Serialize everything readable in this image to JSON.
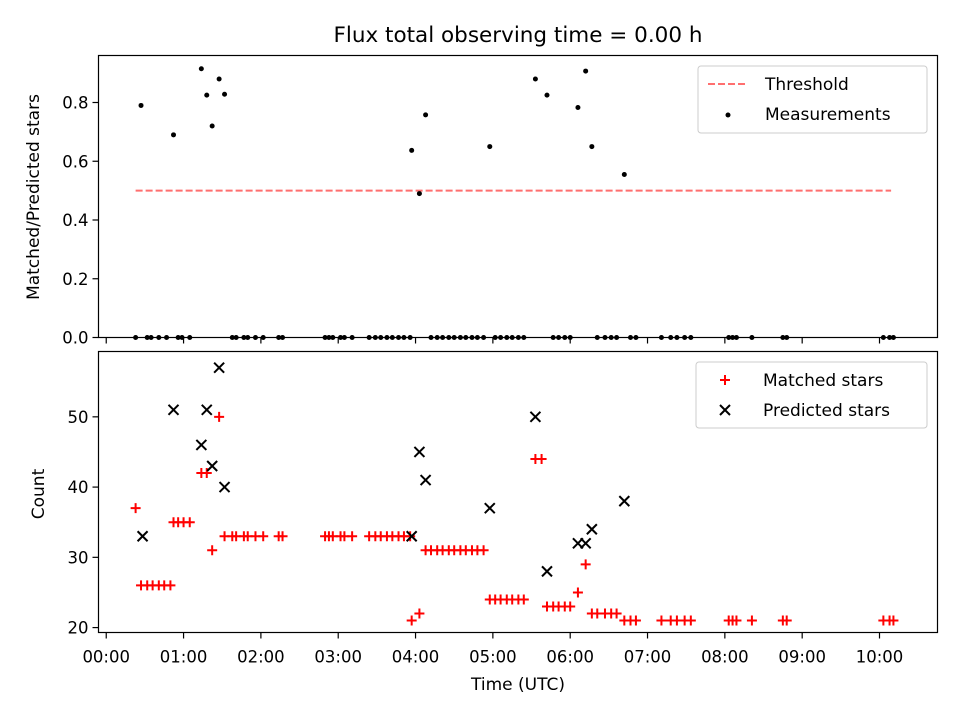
{
  "figure": {
    "title": "Flux total observing time = 0.00 h"
  },
  "colors": {
    "threshold": "#ff6f6f",
    "matched": "#ff0000",
    "predicted": "#000000",
    "measurement": "#000000"
  },
  "chart_data": [
    {
      "type": "scatter",
      "ylabel": "Matched/Predicted stars",
      "ylim": [
        0,
        0.96
      ],
      "yticks": [
        "0.0",
        "0.2",
        "0.4",
        "0.6",
        "0.8"
      ],
      "legend_position": "top-right",
      "threshold": {
        "name": "Threshold",
        "value": 0.5,
        "x_range": [
          0.38,
          10.15
        ]
      },
      "series": [
        {
          "name": "Measurements",
          "x": [
            0.38,
            0.53,
            0.58,
            0.68,
            0.78,
            0.93,
            0.98,
            1.08,
            0.45,
            0.87,
            1.23,
            1.3,
            1.37,
            1.46,
            1.53,
            1.63,
            1.68,
            1.78,
            1.83,
            1.93,
            2.03,
            2.23,
            2.28,
            2.83,
            2.88,
            2.93,
            3.03,
            3.08,
            3.18,
            3.4,
            3.48,
            3.55,
            3.63,
            3.7,
            3.78,
            3.85,
            3.93,
            3.95,
            4.05,
            4.13,
            4.2,
            4.28,
            4.35,
            4.43,
            4.5,
            4.58,
            4.65,
            4.73,
            4.8,
            4.88,
            4.96,
            5.03,
            5.1,
            5.18,
            5.25,
            5.33,
            5.4,
            5.55,
            5.7,
            5.78,
            5.85,
            5.93,
            6.0,
            6.1,
            6.2,
            6.28,
            6.35,
            6.45,
            6.53,
            6.6,
            6.7,
            6.78,
            6.85,
            7.18,
            7.3,
            7.38,
            7.48,
            7.56,
            8.05,
            8.1,
            8.15,
            8.35,
            8.75,
            8.8,
            10.05,
            10.13,
            10.18
          ],
          "y": [
            0,
            0,
            0,
            0,
            0,
            0,
            0,
            0,
            0.79,
            0.69,
            0.915,
            0.825,
            0.72,
            0.88,
            0.828,
            0,
            0,
            0,
            0,
            0,
            0,
            0,
            0,
            0,
            0,
            0,
            0,
            0,
            0,
            0,
            0,
            0,
            0,
            0,
            0,
            0,
            0,
            0.637,
            0.49,
            0.758,
            0,
            0,
            0,
            0,
            0,
            0,
            0,
            0,
            0,
            0,
            0.65,
            0,
            0,
            0,
            0,
            0,
            0,
            0.88,
            0.825,
            0,
            0,
            0,
            0,
            0.783,
            0.907,
            0.65,
            0,
            0,
            0,
            0,
            0.555,
            0,
            0,
            0,
            0,
            0,
            0,
            0,
            0,
            0,
            0,
            0,
            0,
            0,
            0,
            0,
            0
          ]
        }
      ]
    },
    {
      "type": "scatter",
      "xlabel": "Time (UTC)",
      "ylabel": "Count",
      "xlim": [
        -0.1,
        10.75
      ],
      "ylim": [
        19.3,
        59.3
      ],
      "yticks": [
        "20",
        "30",
        "40",
        "50"
      ],
      "xticks": [
        "00:00",
        "01:00",
        "02:00",
        "03:00",
        "04:00",
        "05:00",
        "06:00",
        "07:00",
        "08:00",
        "09:00",
        "10:00"
      ],
      "legend_position": "top-right",
      "series": [
        {
          "name": "Matched stars",
          "x": [
            0.38,
            0.45,
            0.53,
            0.6,
            0.68,
            0.75,
            0.83,
            0.87,
            0.93,
            1.0,
            1.08,
            1.23,
            1.3,
            1.37,
            1.46,
            1.53,
            1.63,
            1.68,
            1.78,
            1.83,
            1.93,
            2.03,
            2.23,
            2.28,
            2.83,
            2.88,
            2.93,
            3.03,
            3.08,
            3.18,
            3.4,
            3.48,
            3.55,
            3.63,
            3.7,
            3.78,
            3.85,
            3.93,
            3.95,
            4.05,
            4.13,
            4.2,
            4.28,
            4.35,
            4.43,
            4.5,
            4.58,
            4.65,
            4.73,
            4.8,
            4.88,
            4.96,
            5.03,
            5.1,
            5.18,
            5.25,
            5.33,
            5.4,
            5.55,
            5.63,
            5.7,
            5.78,
            5.85,
            5.93,
            6.0,
            6.1,
            6.2,
            6.28,
            6.35,
            6.45,
            6.53,
            6.6,
            6.7,
            6.78,
            6.85,
            7.18,
            7.3,
            7.38,
            7.48,
            7.56,
            8.05,
            8.1,
            8.15,
            8.35,
            8.75,
            8.8,
            10.05,
            10.13,
            10.18
          ],
          "y": [
            37,
            26,
            26,
            26,
            26,
            26,
            26,
            35,
            35,
            35,
            35,
            42,
            42,
            31,
            50,
            33,
            33,
            33,
            33,
            33,
            33,
            33,
            33,
            33,
            33,
            33,
            33,
            33,
            33,
            33,
            33,
            33,
            33,
            33,
            33,
            33,
            33,
            33,
            21,
            22,
            31,
            31,
            31,
            31,
            31,
            31,
            31,
            31,
            31,
            31,
            31,
            24,
            24,
            24,
            24,
            24,
            24,
            24,
            44,
            44,
            23,
            23,
            23,
            23,
            23,
            25,
            29,
            22,
            22,
            22,
            22,
            22,
            21,
            21,
            21,
            21,
            21,
            21,
            21,
            21,
            21,
            21,
            21,
            21,
            21,
            21,
            21,
            21,
            21
          ]
        },
        {
          "name": "Predicted stars",
          "x": [
            0.47,
            0.87,
            1.23,
            1.3,
            1.37,
            1.46,
            1.53,
            3.95,
            4.05,
            4.13,
            4.96,
            5.55,
            5.7,
            6.1,
            6.2,
            6.28,
            6.7
          ],
          "y": [
            33,
            51,
            46,
            51,
            43,
            57,
            40,
            33,
            45,
            41,
            37,
            50,
            28,
            32,
            32,
            34,
            38
          ]
        }
      ]
    }
  ]
}
